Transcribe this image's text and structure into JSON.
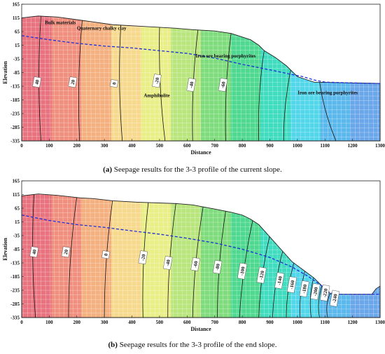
{
  "colors": {
    "zones": [
      "#e8727e",
      "#f08f7d",
      "#f4b07f",
      "#f6d98c",
      "#e9ee86",
      "#b9e57d",
      "#7fdc7c",
      "#4fd88f",
      "#3fdcc0",
      "#52d6ea",
      "#5bb8ec",
      "#6aa6ea"
    ],
    "phreatic": "#1e2fd8",
    "mesh": "#ffffff",
    "contour": "#111111"
  },
  "chart_data": [
    {
      "type": "area",
      "subtitle_letter": "(a)",
      "caption": "Seepage results for the 3-3 profile of the current slope.",
      "xlabel": "Distance",
      "ylabel": "Elevation",
      "xlim": [
        0,
        1300
      ],
      "ylim": [
        -335,
        165
      ],
      "x_ticks": [
        "0",
        "100",
        "200",
        "300",
        "400",
        "500",
        "600",
        "700",
        "800",
        "900",
        "1000",
        "1100",
        "1200",
        "1300"
      ],
      "y_ticks": [
        "165",
        "115",
        "65",
        "15",
        "-35",
        "-85",
        "-135",
        "-185",
        "-235",
        "-285",
        "-335"
      ],
      "surface": [
        [
          0,
          115
        ],
        [
          60,
          122
        ],
        [
          130,
          118
        ],
        [
          210,
          107
        ],
        [
          260,
          100
        ],
        [
          330,
          90
        ],
        [
          420,
          85
        ],
        [
          560,
          77
        ],
        [
          620,
          72
        ],
        [
          700,
          67
        ],
        [
          760,
          58
        ],
        [
          800,
          45
        ],
        [
          830,
          35
        ],
        [
          860,
          15
        ],
        [
          880,
          -5
        ],
        [
          920,
          -30
        ],
        [
          960,
          -60
        ],
        [
          1000,
          -100
        ],
        [
          1030,
          -110
        ],
        [
          1060,
          -120
        ],
        [
          1300,
          -125
        ]
      ],
      "phreatic": [
        [
          0,
          50
        ],
        [
          100,
          35
        ],
        [
          200,
          22
        ],
        [
          300,
          12
        ],
        [
          400,
          5
        ],
        [
          500,
          -5
        ],
        [
          600,
          -15
        ],
        [
          700,
          -32
        ],
        [
          800,
          -55
        ],
        [
          900,
          -75
        ],
        [
          980,
          -92
        ],
        [
          1020,
          -100
        ],
        [
          1060,
          -112
        ],
        [
          1100,
          -120
        ],
        [
          1200,
          -123
        ],
        [
          1300,
          -125
        ]
      ],
      "contours": [
        {
          "label": "40",
          "x_top": 70,
          "x_bottom": 70,
          "x_label": 55,
          "y_label": -120
        },
        {
          "label": "20",
          "x_top": 220,
          "x_bottom": 210,
          "x_label": 185,
          "y_label": -120
        },
        {
          "label": "0",
          "x_top": 360,
          "x_bottom": 365,
          "x_label": 335,
          "y_label": -125
        },
        {
          "label": "-20",
          "x_top": 500,
          "x_bottom": 520,
          "x_label": 490,
          "y_label": -115
        },
        {
          "label": "-40",
          "x_top": 640,
          "x_bottom": 620,
          "x_label": 615,
          "y_label": -130
        },
        {
          "label": "-60",
          "x_top": 760,
          "x_bottom": 740,
          "x_label": 730,
          "y_label": -130
        },
        {
          "label": "",
          "x_top": 880,
          "x_bottom": 860,
          "x_label": 0,
          "y_label": 0
        },
        {
          "label": "",
          "x_top": 980,
          "x_bottom": 950,
          "x_label": 0,
          "y_label": 0
        },
        {
          "label": "",
          "x_top": 1080,
          "x_bottom": 1140,
          "x_label": 0,
          "y_label": 0
        }
      ],
      "annotations": [
        {
          "text": "Bulk materials",
          "x": 140,
          "y": 92
        },
        {
          "text": "Quaternary chalky clay",
          "x": 290,
          "y": 72
        },
        {
          "text": "Iron ore bearing porphyrites",
          "x": 740,
          "y": -30
        },
        {
          "text": "Amphibolite",
          "x": 490,
          "y": -175
        },
        {
          "text": "Iron ore bearing porphyrites",
          "x": 1110,
          "y": -165
        }
      ]
    },
    {
      "type": "area",
      "subtitle_letter": "(b)",
      "caption": "Seepage results for the 3-3 profile of the end slope.",
      "xlabel": "Distance",
      "ylabel": "Elevation",
      "xlim": [
        0,
        1300
      ],
      "ylim": [
        -335,
        165
      ],
      "x_ticks": [
        "0",
        "100",
        "200",
        "300",
        "400",
        "500",
        "600",
        "700",
        "800",
        "900",
        "1000",
        "1100",
        "1200",
        "1300"
      ],
      "y_ticks": [
        "165",
        "115",
        "65",
        "15",
        "-35",
        "-85",
        "-135",
        "-185",
        "-235",
        "-285",
        "-335"
      ],
      "surface": [
        [
          0,
          110
        ],
        [
          60,
          117
        ],
        [
          130,
          112
        ],
        [
          210,
          103
        ],
        [
          260,
          100
        ],
        [
          330,
          92
        ],
        [
          420,
          87
        ],
        [
          560,
          82
        ],
        [
          620,
          77
        ],
        [
          700,
          62
        ],
        [
          760,
          50
        ],
        [
          800,
          40
        ],
        [
          830,
          25
        ],
        [
          860,
          5
        ],
        [
          900,
          -40
        ],
        [
          940,
          -85
        ],
        [
          980,
          -130
        ],
        [
          1020,
          -160
        ],
        [
          1060,
          -190
        ],
        [
          1090,
          -220
        ],
        [
          1120,
          -248
        ],
        [
          1150,
          -250
        ],
        [
          1270,
          -250
        ],
        [
          1285,
          -230
        ],
        [
          1300,
          -220
        ]
      ],
      "phreatic": [
        [
          0,
          40
        ],
        [
          100,
          20
        ],
        [
          200,
          5
        ],
        [
          300,
          -5
        ],
        [
          400,
          -18
        ],
        [
          500,
          -30
        ],
        [
          600,
          -45
        ],
        [
          700,
          -62
        ],
        [
          800,
          -85
        ],
        [
          900,
          -115
        ],
        [
          980,
          -150
        ],
        [
          1040,
          -185
        ],
        [
          1090,
          -220
        ],
        [
          1120,
          -245
        ],
        [
          1150,
          -250
        ],
        [
          1300,
          -250
        ]
      ],
      "contours": [
        {
          "label": "40",
          "x_top": 45,
          "x_bottom": 50,
          "x_label": 45,
          "y_label": -95
        },
        {
          "label": "20",
          "x_top": 200,
          "x_bottom": 170,
          "x_label": 160,
          "y_label": -95
        },
        {
          "label": "0",
          "x_top": 330,
          "x_bottom": 300,
          "x_label": 305,
          "y_label": -105
        },
        {
          "label": "-20",
          "x_top": 460,
          "x_bottom": 440,
          "x_label": 440,
          "y_label": -115
        },
        {
          "label": "-40",
          "x_top": 560,
          "x_bottom": 530,
          "x_label": 530,
          "y_label": -135
        },
        {
          "label": "-60",
          "x_top": 660,
          "x_bottom": 620,
          "x_label": 630,
          "y_label": -140
        },
        {
          "label": "-80",
          "x_top": 740,
          "x_bottom": 710,
          "x_label": 710,
          "y_label": -150
        },
        {
          "label": "-100",
          "x_top": 840,
          "x_bottom": 790,
          "x_label": 800,
          "y_label": -165
        },
        {
          "label": "-120",
          "x_top": 900,
          "x_bottom": 860,
          "x_label": 870,
          "y_label": -180
        },
        {
          "label": "-140",
          "x_top": 950,
          "x_bottom": 910,
          "x_label": 935,
          "y_label": -200
        },
        {
          "label": "-160",
          "x_top": 990,
          "x_bottom": 960,
          "x_label": 980,
          "y_label": -215
        },
        {
          "label": "-180",
          "x_top": 1030,
          "x_bottom": 1010,
          "x_label": 1025,
          "y_label": -230
        },
        {
          "label": "-200",
          "x_top": 1060,
          "x_bottom": 1050,
          "x_label": 1065,
          "y_label": -240
        },
        {
          "label": "-220",
          "x_top": 1090,
          "x_bottom": 1080,
          "x_label": 1100,
          "y_label": -245
        },
        {
          "label": "-240",
          "x_top": 1120,
          "x_bottom": 1110,
          "x_label": 1135,
          "y_label": -265
        }
      ],
      "annotations": []
    }
  ]
}
